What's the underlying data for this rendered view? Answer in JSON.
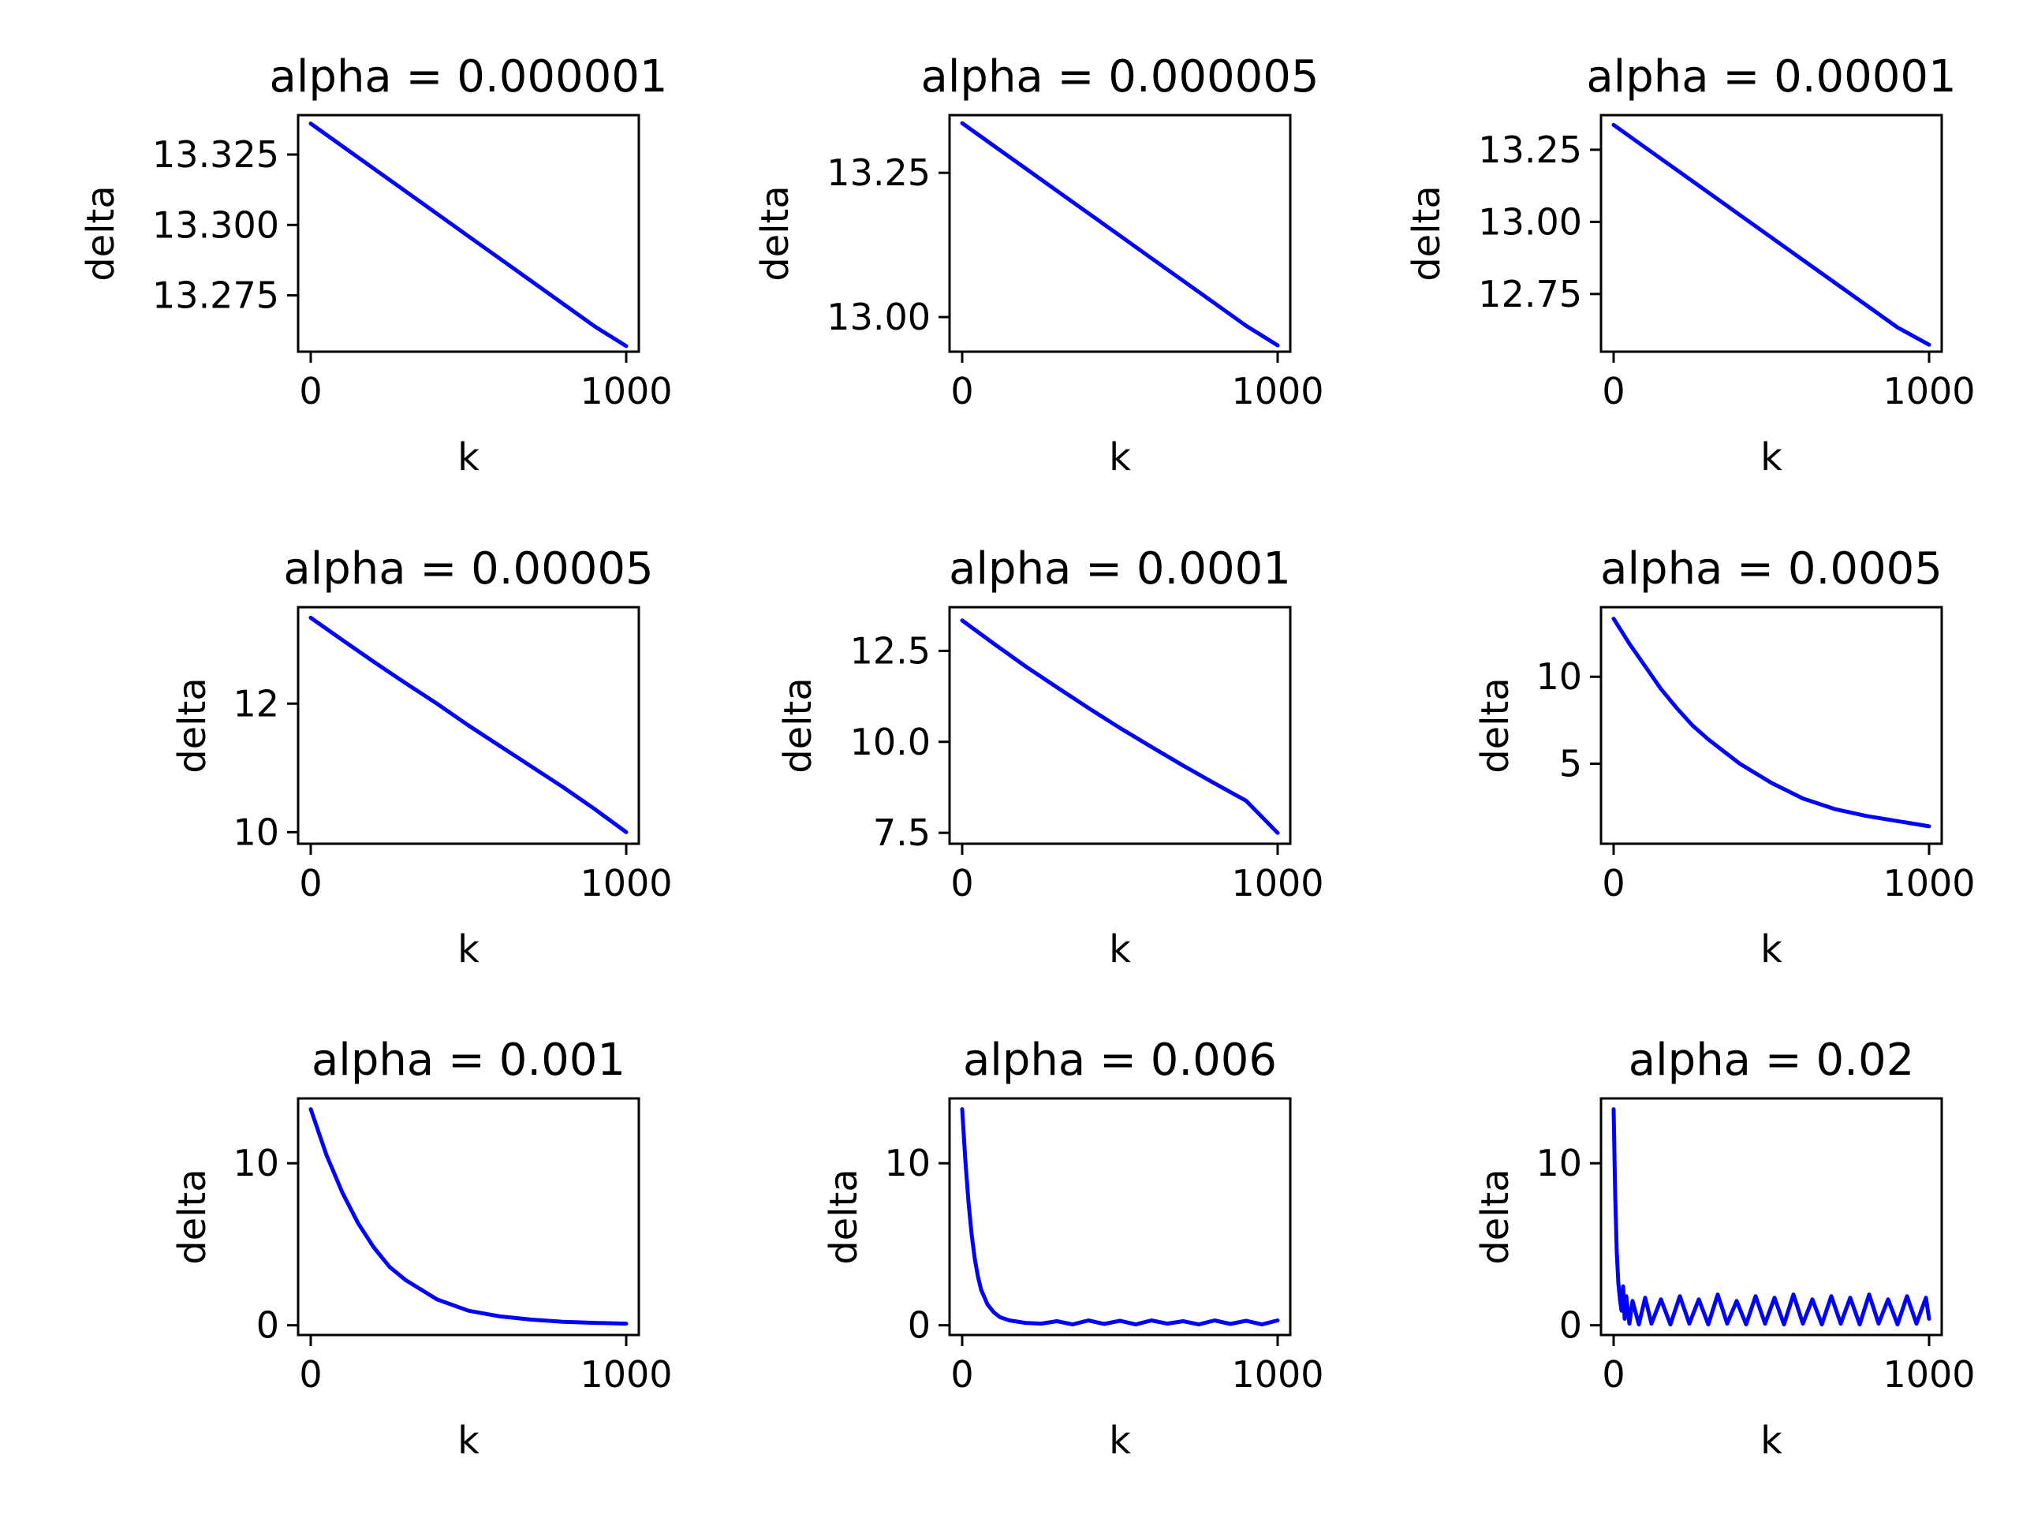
{
  "chart_data": [
    {
      "type": "line",
      "title": "alpha = 0.000001",
      "xlabel": "k",
      "ylabel": "delta",
      "xlim": [
        -40,
        1040
      ],
      "ylim": [
        13.255,
        13.339
      ],
      "xticks": [
        0,
        1000
      ],
      "xtick_labels": [
        "0",
        "1000"
      ],
      "yticks": [
        13.275,
        13.3,
        13.325
      ],
      "ytick_labels": [
        "13.275",
        "13.300",
        "13.325"
      ],
      "grid": false,
      "color": "#0000ff",
      "series": [
        {
          "x": [
            0,
            100,
            200,
            300,
            400,
            500,
            600,
            700,
            800,
            900,
            1000
          ],
          "y": [
            13.336,
            13.328,
            13.32,
            13.312,
            13.304,
            13.296,
            13.288,
            13.28,
            13.272,
            13.264,
            13.257
          ]
        }
      ]
    },
    {
      "type": "line",
      "title": "alpha = 0.000005",
      "xlabel": "k",
      "ylabel": "delta",
      "xlim": [
        -40,
        1040
      ],
      "ylim": [
        12.94,
        13.35
      ],
      "xticks": [
        0,
        1000
      ],
      "xtick_labels": [
        "0",
        "1000"
      ],
      "yticks": [
        13.0,
        13.25
      ],
      "ytick_labels": [
        "13.00",
        "13.25"
      ],
      "grid": false,
      "color": "#0000ff",
      "series": [
        {
          "x": [
            0,
            100,
            200,
            300,
            400,
            500,
            600,
            700,
            800,
            900,
            1000
          ],
          "y": [
            13.336,
            13.297,
            13.258,
            13.219,
            13.18,
            13.141,
            13.102,
            13.063,
            13.024,
            12.985,
            12.951
          ]
        }
      ]
    },
    {
      "type": "line",
      "title": "alpha = 0.00001",
      "xlabel": "k",
      "ylabel": "delta",
      "xlim": [
        -40,
        1040
      ],
      "ylim": [
        12.55,
        13.37
      ],
      "xticks": [
        0,
        1000
      ],
      "xtick_labels": [
        "0",
        "1000"
      ],
      "yticks": [
        12.75,
        13.0,
        13.25
      ],
      "ytick_labels": [
        "12.75",
        "13.00",
        "13.25"
      ],
      "grid": false,
      "color": "#0000ff",
      "series": [
        {
          "x": [
            0,
            100,
            200,
            300,
            400,
            500,
            600,
            700,
            800,
            900,
            1000
          ],
          "y": [
            13.336,
            13.258,
            13.18,
            13.102,
            13.024,
            12.946,
            12.868,
            12.79,
            12.712,
            12.634,
            12.574
          ]
        }
      ]
    },
    {
      "type": "line",
      "title": "alpha = 0.00005",
      "xlabel": "k",
      "ylabel": "delta",
      "xlim": [
        -40,
        1040
      ],
      "ylim": [
        9.82,
        13.5
      ],
      "xticks": [
        0,
        1000
      ],
      "xtick_labels": [
        "0",
        "1000"
      ],
      "yticks": [
        10,
        12
      ],
      "ytick_labels": [
        "10",
        "12"
      ],
      "grid": false,
      "color": "#0000ff",
      "series": [
        {
          "x": [
            0,
            100,
            200,
            300,
            400,
            500,
            600,
            700,
            800,
            900,
            1000
          ],
          "y": [
            13.336,
            12.99,
            12.65,
            12.32,
            12.0,
            11.66,
            11.34,
            11.02,
            10.7,
            10.36,
            10.0
          ]
        }
      ]
    },
    {
      "type": "line",
      "title": "alpha = 0.0001",
      "xlabel": "k",
      "ylabel": "delta",
      "xlim": [
        -40,
        1040
      ],
      "ylim": [
        7.2,
        13.7
      ],
      "xticks": [
        0,
        1000
      ],
      "xtick_labels": [
        "0",
        "1000"
      ],
      "yticks": [
        7.5,
        10.0,
        12.5
      ],
      "ytick_labels": [
        "7.5",
        "10.0",
        "12.5"
      ],
      "grid": false,
      "color": "#0000ff",
      "series": [
        {
          "x": [
            0,
            100,
            200,
            300,
            400,
            500,
            600,
            700,
            800,
            900,
            1000
          ],
          "y": [
            13.336,
            12.7,
            12.08,
            11.5,
            10.93,
            10.38,
            9.86,
            9.35,
            8.86,
            8.38,
            7.5
          ]
        }
      ]
    },
    {
      "type": "line",
      "title": "alpha = 0.0005",
      "xlabel": "k",
      "ylabel": "delta",
      "xlim": [
        -40,
        1040
      ],
      "ylim": [
        0.4,
        14.0
      ],
      "xticks": [
        0,
        1000
      ],
      "xtick_labels": [
        "0",
        "1000"
      ],
      "yticks": [
        5,
        10
      ],
      "ytick_labels": [
        "5",
        "10"
      ],
      "grid": false,
      "color": "#0000ff",
      "series": [
        {
          "x": [
            0,
            50,
            100,
            150,
            200,
            250,
            300,
            400,
            500,
            600,
            700,
            800,
            900,
            1000
          ],
          "y": [
            13.336,
            11.9,
            10.6,
            9.3,
            8.2,
            7.2,
            6.4,
            5.0,
            3.9,
            3.0,
            2.4,
            2.0,
            1.7,
            1.4
          ]
        }
      ]
    },
    {
      "type": "line",
      "title": "alpha = 0.001",
      "xlabel": "k",
      "ylabel": "delta",
      "xlim": [
        -40,
        1040
      ],
      "ylim": [
        -0.6,
        14.0
      ],
      "xticks": [
        0,
        1000
      ],
      "xtick_labels": [
        "0",
        "1000"
      ],
      "yticks": [
        0,
        10
      ],
      "ytick_labels": [
        "0",
        "10"
      ],
      "grid": false,
      "color": "#0000ff",
      "series": [
        {
          "x": [
            0,
            50,
            100,
            150,
            200,
            250,
            300,
            400,
            500,
            600,
            700,
            800,
            900,
            1000
          ],
          "y": [
            13.336,
            10.5,
            8.2,
            6.3,
            4.8,
            3.6,
            2.8,
            1.6,
            0.9,
            0.55,
            0.35,
            0.22,
            0.15,
            0.1
          ]
        }
      ]
    },
    {
      "type": "line",
      "title": "alpha = 0.006",
      "xlabel": "k",
      "ylabel": "delta",
      "xlim": [
        -40,
        1040
      ],
      "ylim": [
        -0.6,
        14.0
      ],
      "xticks": [
        0,
        1000
      ],
      "xtick_labels": [
        "0",
        "1000"
      ],
      "yticks": [
        0,
        10
      ],
      "ytick_labels": [
        "0",
        "10"
      ],
      "grid": false,
      "color": "#0000ff",
      "series": [
        {
          "x": [
            0,
            10,
            20,
            30,
            40,
            50,
            60,
            80,
            100,
            120,
            150,
            200,
            250,
            300,
            350,
            400,
            450,
            500,
            550,
            600,
            650,
            700,
            750,
            800,
            850,
            900,
            950,
            1000
          ],
          "y": [
            13.336,
            10.2,
            7.6,
            5.6,
            4.1,
            3.0,
            2.2,
            1.3,
            0.8,
            0.5,
            0.3,
            0.15,
            0.1,
            0.25,
            0.05,
            0.3,
            0.08,
            0.28,
            0.05,
            0.3,
            0.1,
            0.25,
            0.05,
            0.3,
            0.08,
            0.28,
            0.05,
            0.3
          ]
        }
      ]
    },
    {
      "type": "line",
      "title": "alpha = 0.02",
      "xlabel": "k",
      "ylabel": "delta",
      "xlim": [
        -40,
        1040
      ],
      "ylim": [
        -0.6,
        14.0
      ],
      "xticks": [
        0,
        1000
      ],
      "xtick_labels": [
        "0",
        "1000"
      ],
      "yticks": [
        0,
        10
      ],
      "ytick_labels": [
        "0",
        "10"
      ],
      "grid": false,
      "color": "#0000ff",
      "series": [
        {
          "x": [
            0,
            5,
            10,
            15,
            20,
            25,
            30,
            35,
            40,
            50,
            60,
            80,
            100,
            120,
            150,
            180,
            210,
            240,
            270,
            300,
            330,
            360,
            390,
            420,
            450,
            480,
            510,
            540,
            570,
            600,
            630,
            660,
            690,
            720,
            750,
            780,
            810,
            840,
            870,
            900,
            930,
            960,
            990,
            1000
          ],
          "y": [
            13.336,
            8.0,
            4.5,
            2.6,
            1.6,
            0.9,
            2.4,
            0.4,
            1.8,
            0.1,
            1.5,
            0.05,
            1.7,
            0.1,
            1.6,
            0.05,
            1.8,
            0.1,
            1.6,
            0.05,
            1.9,
            0.1,
            1.5,
            0.05,
            1.8,
            0.1,
            1.7,
            0.05,
            1.9,
            0.1,
            1.6,
            0.05,
            1.8,
            0.1,
            1.7,
            0.05,
            1.9,
            0.1,
            1.6,
            0.05,
            1.8,
            0.1,
            1.7,
            0.4
          ]
        }
      ]
    }
  ]
}
